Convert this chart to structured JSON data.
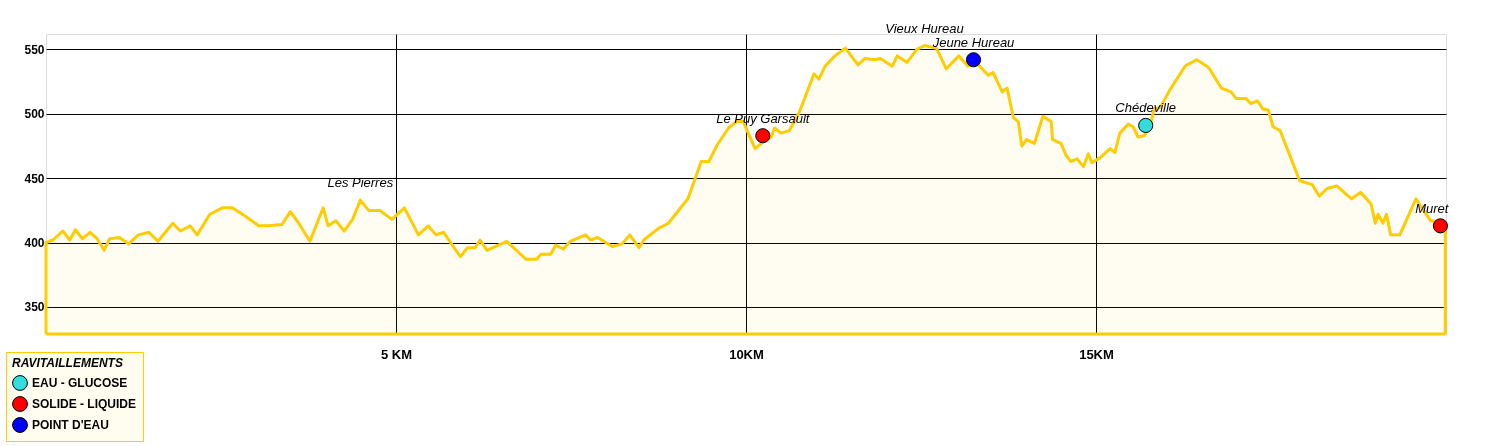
{
  "chart_data": {
    "type": "area",
    "xlim": [
      0,
      20
    ],
    "ylim": [
      329,
      562
    ],
    "xticks": [
      {
        "value": 5,
        "label": "5 KM"
      },
      {
        "value": 10,
        "label": "10KM"
      },
      {
        "value": 15,
        "label": "15KM"
      }
    ],
    "yticks": [
      350,
      400,
      450,
      500,
      550
    ],
    "grid": true,
    "legend": "bottom left",
    "legend_title": "RAVITAILLEMENTS",
    "series": [
      {
        "color": "#ffcc00",
        "x": [
          0.0,
          0.1,
          0.24,
          0.34,
          0.42,
          0.52,
          0.63,
          0.73,
          0.83,
          0.91,
          1.05,
          1.18,
          1.32,
          1.47,
          1.6,
          1.81,
          1.92,
          2.06,
          2.16,
          2.34,
          2.52,
          2.66,
          2.86,
          3.04,
          3.18,
          3.37,
          3.49,
          3.6,
          3.77,
          3.96,
          4.03,
          4.14,
          4.26,
          4.38,
          4.49,
          4.61,
          4.77,
          4.94,
          5.12,
          5.32,
          5.46,
          5.57,
          5.68,
          5.92,
          6.02,
          6.13,
          6.2,
          6.3,
          6.58,
          6.86,
          7.01,
          7.07,
          7.21,
          7.28,
          7.39,
          7.49,
          7.71,
          7.78,
          7.88,
          8.09,
          8.23,
          8.34,
          8.47,
          8.54,
          8.75,
          8.89,
          9.17,
          9.36,
          9.47,
          9.59,
          9.75,
          9.87,
          9.96,
          10.13,
          10.24,
          10.36,
          10.41,
          10.5,
          10.62,
          10.76,
          10.97,
          11.04,
          11.13,
          11.27,
          11.42,
          11.6,
          11.7,
          11.84,
          11.92,
          12.09,
          12.16,
          12.3,
          12.44,
          12.55,
          12.72,
          12.86,
          13.04,
          13.17,
          13.28,
          13.32,
          13.46,
          13.53,
          13.66,
          13.73,
          13.82,
          13.89,
          13.94,
          14.01,
          14.12,
          14.24,
          14.36,
          14.38,
          14.5,
          14.57,
          14.64,
          14.73,
          14.82,
          14.89,
          14.94,
          15.06,
          15.2,
          15.27,
          15.34,
          15.46,
          15.53,
          15.6,
          15.69,
          15.78,
          15.83,
          15.92,
          16.06,
          16.26,
          16.3,
          16.44,
          16.61,
          16.79,
          16.93,
          17.0,
          17.14,
          17.21,
          17.31,
          17.38,
          17.46,
          17.53,
          17.63,
          17.91,
          18.09,
          18.19,
          18.3,
          18.44,
          18.65,
          18.78,
          18.93,
          18.99,
          19.03,
          19.1,
          19.15,
          19.21,
          19.34,
          19.57,
          19.78,
          19.94,
          19.99
        ],
        "values": [
          400,
          402,
          409,
          402,
          410,
          403,
          408,
          403,
          394,
          403,
          404,
          399,
          406,
          408,
          401,
          415,
          409,
          413,
          406,
          422,
          427,
          427,
          420,
          413,
          413,
          414,
          424,
          416,
          401,
          427,
          413,
          417,
          409,
          418,
          433,
          425,
          425,
          418,
          427,
          406,
          413,
          406,
          408,
          389,
          396,
          396,
          402,
          394,
          401,
          387,
          387,
          391,
          391,
          398,
          395,
          401,
          406,
          402,
          404,
          397,
          399,
          406,
          396,
          402,
          411,
          415,
          434,
          463,
          463,
          476,
          489,
          494,
          494,
          473,
          478,
          482,
          489,
          485,
          487,
          501,
          531,
          527,
          537,
          545,
          551,
          538,
          543,
          542,
          543,
          537,
          545,
          540,
          550,
          553,
          551,
          535,
          545,
          537,
          539,
          538,
          530,
          532,
          517,
          520,
          497,
          494,
          475,
          480,
          477,
          498,
          494,
          480,
          477,
          468,
          463,
          465,
          459,
          469,
          462,
          466,
          473,
          470,
          485,
          492,
          490,
          482,
          483,
          492,
          504,
          505,
          519,
          536,
          538,
          542,
          536,
          520,
          517,
          512,
          512,
          508,
          510,
          504,
          503,
          490,
          487,
          448,
          445,
          436,
          442,
          444,
          434,
          439,
          430,
          415,
          422,
          415,
          422,
          406,
          406,
          434,
          417,
          416,
          413
        ]
      },
      {
        "type": "scatter",
        "marker": "circle",
        "name": "EAU - GLUCOSE",
        "color": "#33dddd",
        "x": [
          15.71
        ],
        "values": [
          491
        ]
      },
      {
        "type": "scatter",
        "marker": "circle",
        "name": "SOLIDE - LIQUIDE",
        "color": "#ff0000",
        "x": [
          10.24,
          19.92
        ],
        "values": [
          483,
          413
        ]
      },
      {
        "type": "scatter",
        "marker": "circle",
        "name": "POINT D'EAU",
        "color": "#0000ff",
        "x": [
          13.25
        ],
        "values": [
          542
        ]
      }
    ],
    "annotations": [
      {
        "text": "Les Pierres",
        "x": 4.49,
        "y": 433
      },
      {
        "text": "Le Puy Garsault",
        "x": 10.24,
        "y": 483
      },
      {
        "text": "Vieux Hureau",
        "x": 12.55,
        "y": 553
      },
      {
        "text": "Jeune Hureau",
        "x": 13.25,
        "y": 542
      },
      {
        "text": "Chédeville",
        "x": 15.71,
        "y": 491
      },
      {
        "text": "Muret",
        "x": 19.92,
        "y": 413
      }
    ]
  }
}
